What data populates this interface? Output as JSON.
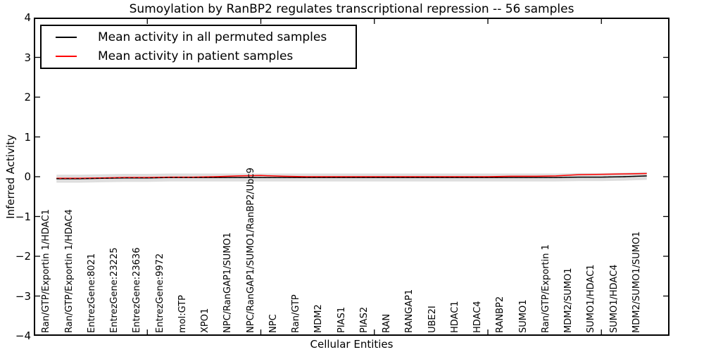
{
  "chart_data": {
    "type": "line",
    "title": "Sumoylation by RanBP2 regulates transcriptional repression -- 56 samples",
    "xlabel": "Cellular Entities",
    "ylabel": "Inferred Activity",
    "ylim": [
      -4,
      4
    ],
    "xlim": [
      0,
      28
    ],
    "grid": false,
    "legend_position": "upper left",
    "yticks": [
      {
        "value": 4,
        "label": "4"
      },
      {
        "value": 3,
        "label": "3"
      },
      {
        "value": 2,
        "label": "2"
      },
      {
        "value": 1,
        "label": "1"
      },
      {
        "value": 0,
        "label": "0"
      },
      {
        "value": -1,
        "label": "−1"
      },
      {
        "value": -2,
        "label": "−2"
      },
      {
        "value": -3,
        "label": "−3"
      },
      {
        "value": -4,
        "label": "−4"
      }
    ],
    "xticks": [
      5,
      10,
      15,
      20,
      25
    ],
    "categories": [
      "Ran/GTP/Exportin 1/HDAC1",
      "Ran/GTP/Exportin 1/HDAC4",
      "EntrezGene:8021",
      "EntrezGene:23225",
      "EntrezGene:23636",
      "EntrezGene:9972",
      "mol:GTP",
      "XPO1",
      "NPC/RanGAP1/SUMO1",
      "NPC/RanGAP1/SUMO1/RanBP2/Ubc9",
      "NPC",
      "Ran/GTP",
      "MDM2",
      "PIAS1",
      "PIAS2",
      "RAN",
      "RANGAP1",
      "UBE2I",
      "HDAC1",
      "HDAC4",
      "RANBP2",
      "SUMO1",
      "Ran/GTP/Exportin 1",
      "MDM2/SUMO1",
      "SUMO1/HDAC1",
      "SUMO1/HDAC4",
      "MDM2/SUMO1/SUMO1"
    ],
    "series": [
      {
        "name": "Mean activity in all permuted samples",
        "color": "#000000",
        "style": "solid",
        "values": [
          -0.05,
          -0.05,
          -0.04,
          -0.03,
          -0.03,
          -0.02,
          -0.02,
          -0.02,
          -0.02,
          -0.02,
          -0.02,
          -0.02,
          -0.02,
          -0.02,
          -0.02,
          -0.02,
          -0.02,
          -0.02,
          -0.02,
          -0.02,
          -0.02,
          -0.02,
          -0.02,
          -0.01,
          -0.01,
          0.0,
          0.02
        ]
      },
      {
        "name": "Mean activity in patient samples",
        "color": "#ff0000",
        "style": "solid",
        "values": [
          -0.04,
          -0.04,
          -0.03,
          -0.02,
          -0.02,
          -0.01,
          -0.01,
          0.0,
          0.02,
          0.03,
          0.01,
          0.0,
          0.0,
          0.0,
          0.0,
          0.0,
          0.0,
          0.0,
          0.0,
          0.0,
          0.01,
          0.01,
          0.02,
          0.05,
          0.06,
          0.07,
          0.08
        ]
      },
      {
        "name": "dashed-overlay-of-permuted-mean",
        "color": "#000000",
        "style": "dashed",
        "values": [
          -0.05,
          -0.05,
          -0.04,
          -0.03,
          -0.03,
          -0.02,
          -0.02,
          -0.02,
          -0.02,
          -0.02,
          -0.02,
          -0.02,
          -0.02,
          -0.02,
          -0.02,
          -0.02,
          -0.02,
          -0.02,
          -0.02,
          -0.02,
          -0.02,
          -0.02,
          -0.02,
          -0.01,
          -0.01,
          0.0,
          0.02
        ]
      }
    ],
    "band": {
      "halfwidth": 0.1,
      "color": "rgba(0,0,0,0.13)",
      "center_series": 0
    },
    "legend_entries": [
      "Mean activity in all permuted samples",
      "Mean activity in patient samples"
    ]
  }
}
